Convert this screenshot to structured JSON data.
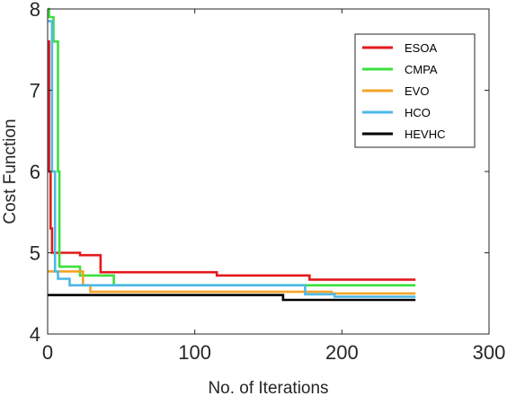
{
  "chart_data": {
    "type": "line",
    "title": "",
    "xlabel": "No. of Iterations",
    "ylabel": "Cost Function",
    "xlim": [
      0,
      300
    ],
    "ylim": [
      4,
      8
    ],
    "xticks": [
      0,
      100,
      200,
      300
    ],
    "yticks": [
      4,
      5,
      6,
      7,
      8
    ],
    "grid": false,
    "legend_position": "top-right",
    "series": [
      {
        "name": "ESOA",
        "color": "#e41a1c",
        "points": [
          [
            0,
            7.6
          ],
          [
            1,
            7.6
          ],
          [
            1,
            6.0
          ],
          [
            2,
            6.0
          ],
          [
            2,
            5.3
          ],
          [
            3,
            5.3
          ],
          [
            3,
            5.0
          ],
          [
            22,
            5.0
          ],
          [
            22,
            4.97
          ],
          [
            36,
            4.97
          ],
          [
            36,
            4.76
          ],
          [
            115,
            4.76
          ],
          [
            115,
            4.72
          ],
          [
            178,
            4.72
          ],
          [
            178,
            4.67
          ],
          [
            250,
            4.67
          ]
        ]
      },
      {
        "name": "CMPA",
        "color": "#3ce03c",
        "points": [
          [
            0,
            8.0
          ],
          [
            1,
            8.0
          ],
          [
            1,
            7.9
          ],
          [
            4,
            7.9
          ],
          [
            4,
            7.6
          ],
          [
            7,
            7.6
          ],
          [
            7,
            6.0
          ],
          [
            8,
            6.0
          ],
          [
            8,
            4.83
          ],
          [
            22,
            4.83
          ],
          [
            22,
            4.72
          ],
          [
            45,
            4.72
          ],
          [
            45,
            4.6
          ],
          [
            195,
            4.6
          ],
          [
            195,
            4.6
          ],
          [
            250,
            4.6
          ]
        ]
      },
      {
        "name": "EVO",
        "color": "#f2a428",
        "points": [
          [
            0,
            4.77
          ],
          [
            24,
            4.77
          ],
          [
            24,
            4.6
          ],
          [
            29,
            4.6
          ],
          [
            29,
            4.52
          ],
          [
            193,
            4.52
          ],
          [
            193,
            4.5
          ],
          [
            250,
            4.5
          ]
        ]
      },
      {
        "name": "HCO",
        "color": "#4db8e8",
        "points": [
          [
            0,
            7.85
          ],
          [
            3,
            7.85
          ],
          [
            3,
            6.0
          ],
          [
            5,
            6.0
          ],
          [
            5,
            4.77
          ],
          [
            7,
            4.77
          ],
          [
            7,
            4.68
          ],
          [
            15,
            4.68
          ],
          [
            15,
            4.6
          ],
          [
            175,
            4.6
          ],
          [
            175,
            4.49
          ],
          [
            195,
            4.49
          ],
          [
            195,
            4.46
          ],
          [
            250,
            4.46
          ]
        ]
      },
      {
        "name": "HEVHC",
        "color": "#000000",
        "points": [
          [
            0,
            4.48
          ],
          [
            160,
            4.48
          ],
          [
            160,
            4.42
          ],
          [
            250,
            4.42
          ]
        ]
      }
    ]
  }
}
